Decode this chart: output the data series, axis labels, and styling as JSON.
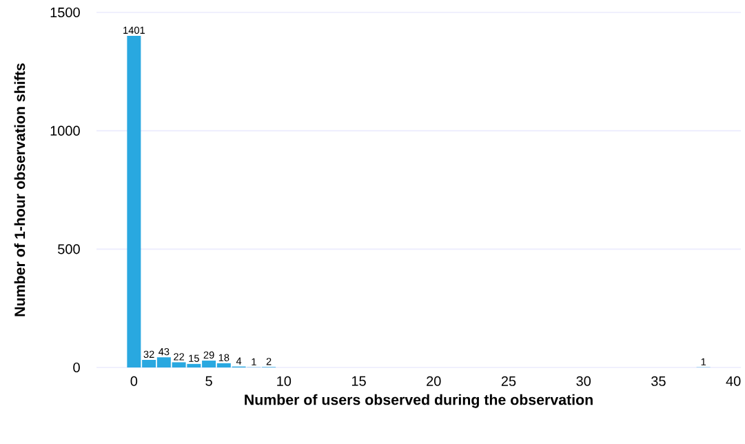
{
  "chart_data": {
    "type": "bar",
    "xlabel": "Number of users observed during the observation",
    "ylabel": "Number of 1-hour observation shifts",
    "x": [
      0,
      1,
      2,
      3,
      4,
      5,
      6,
      7,
      8,
      9,
      38
    ],
    "values": [
      1401,
      32,
      43,
      22,
      15,
      29,
      18,
      4,
      1,
      2,
      1
    ],
    "color": "#29a8e0",
    "xlim": [
      -2.5,
      40.5
    ],
    "xticks": [
      0,
      5,
      10,
      15,
      20,
      25,
      30,
      35,
      40
    ],
    "ylim": [
      0,
      1500
    ],
    "yticks": [
      0,
      500,
      1000,
      1500
    ],
    "value_labels": [
      "1401",
      "32",
      "43",
      "22",
      "15",
      "29",
      "18",
      "4",
      "1",
      "2",
      "1"
    ],
    "grid": "y"
  }
}
